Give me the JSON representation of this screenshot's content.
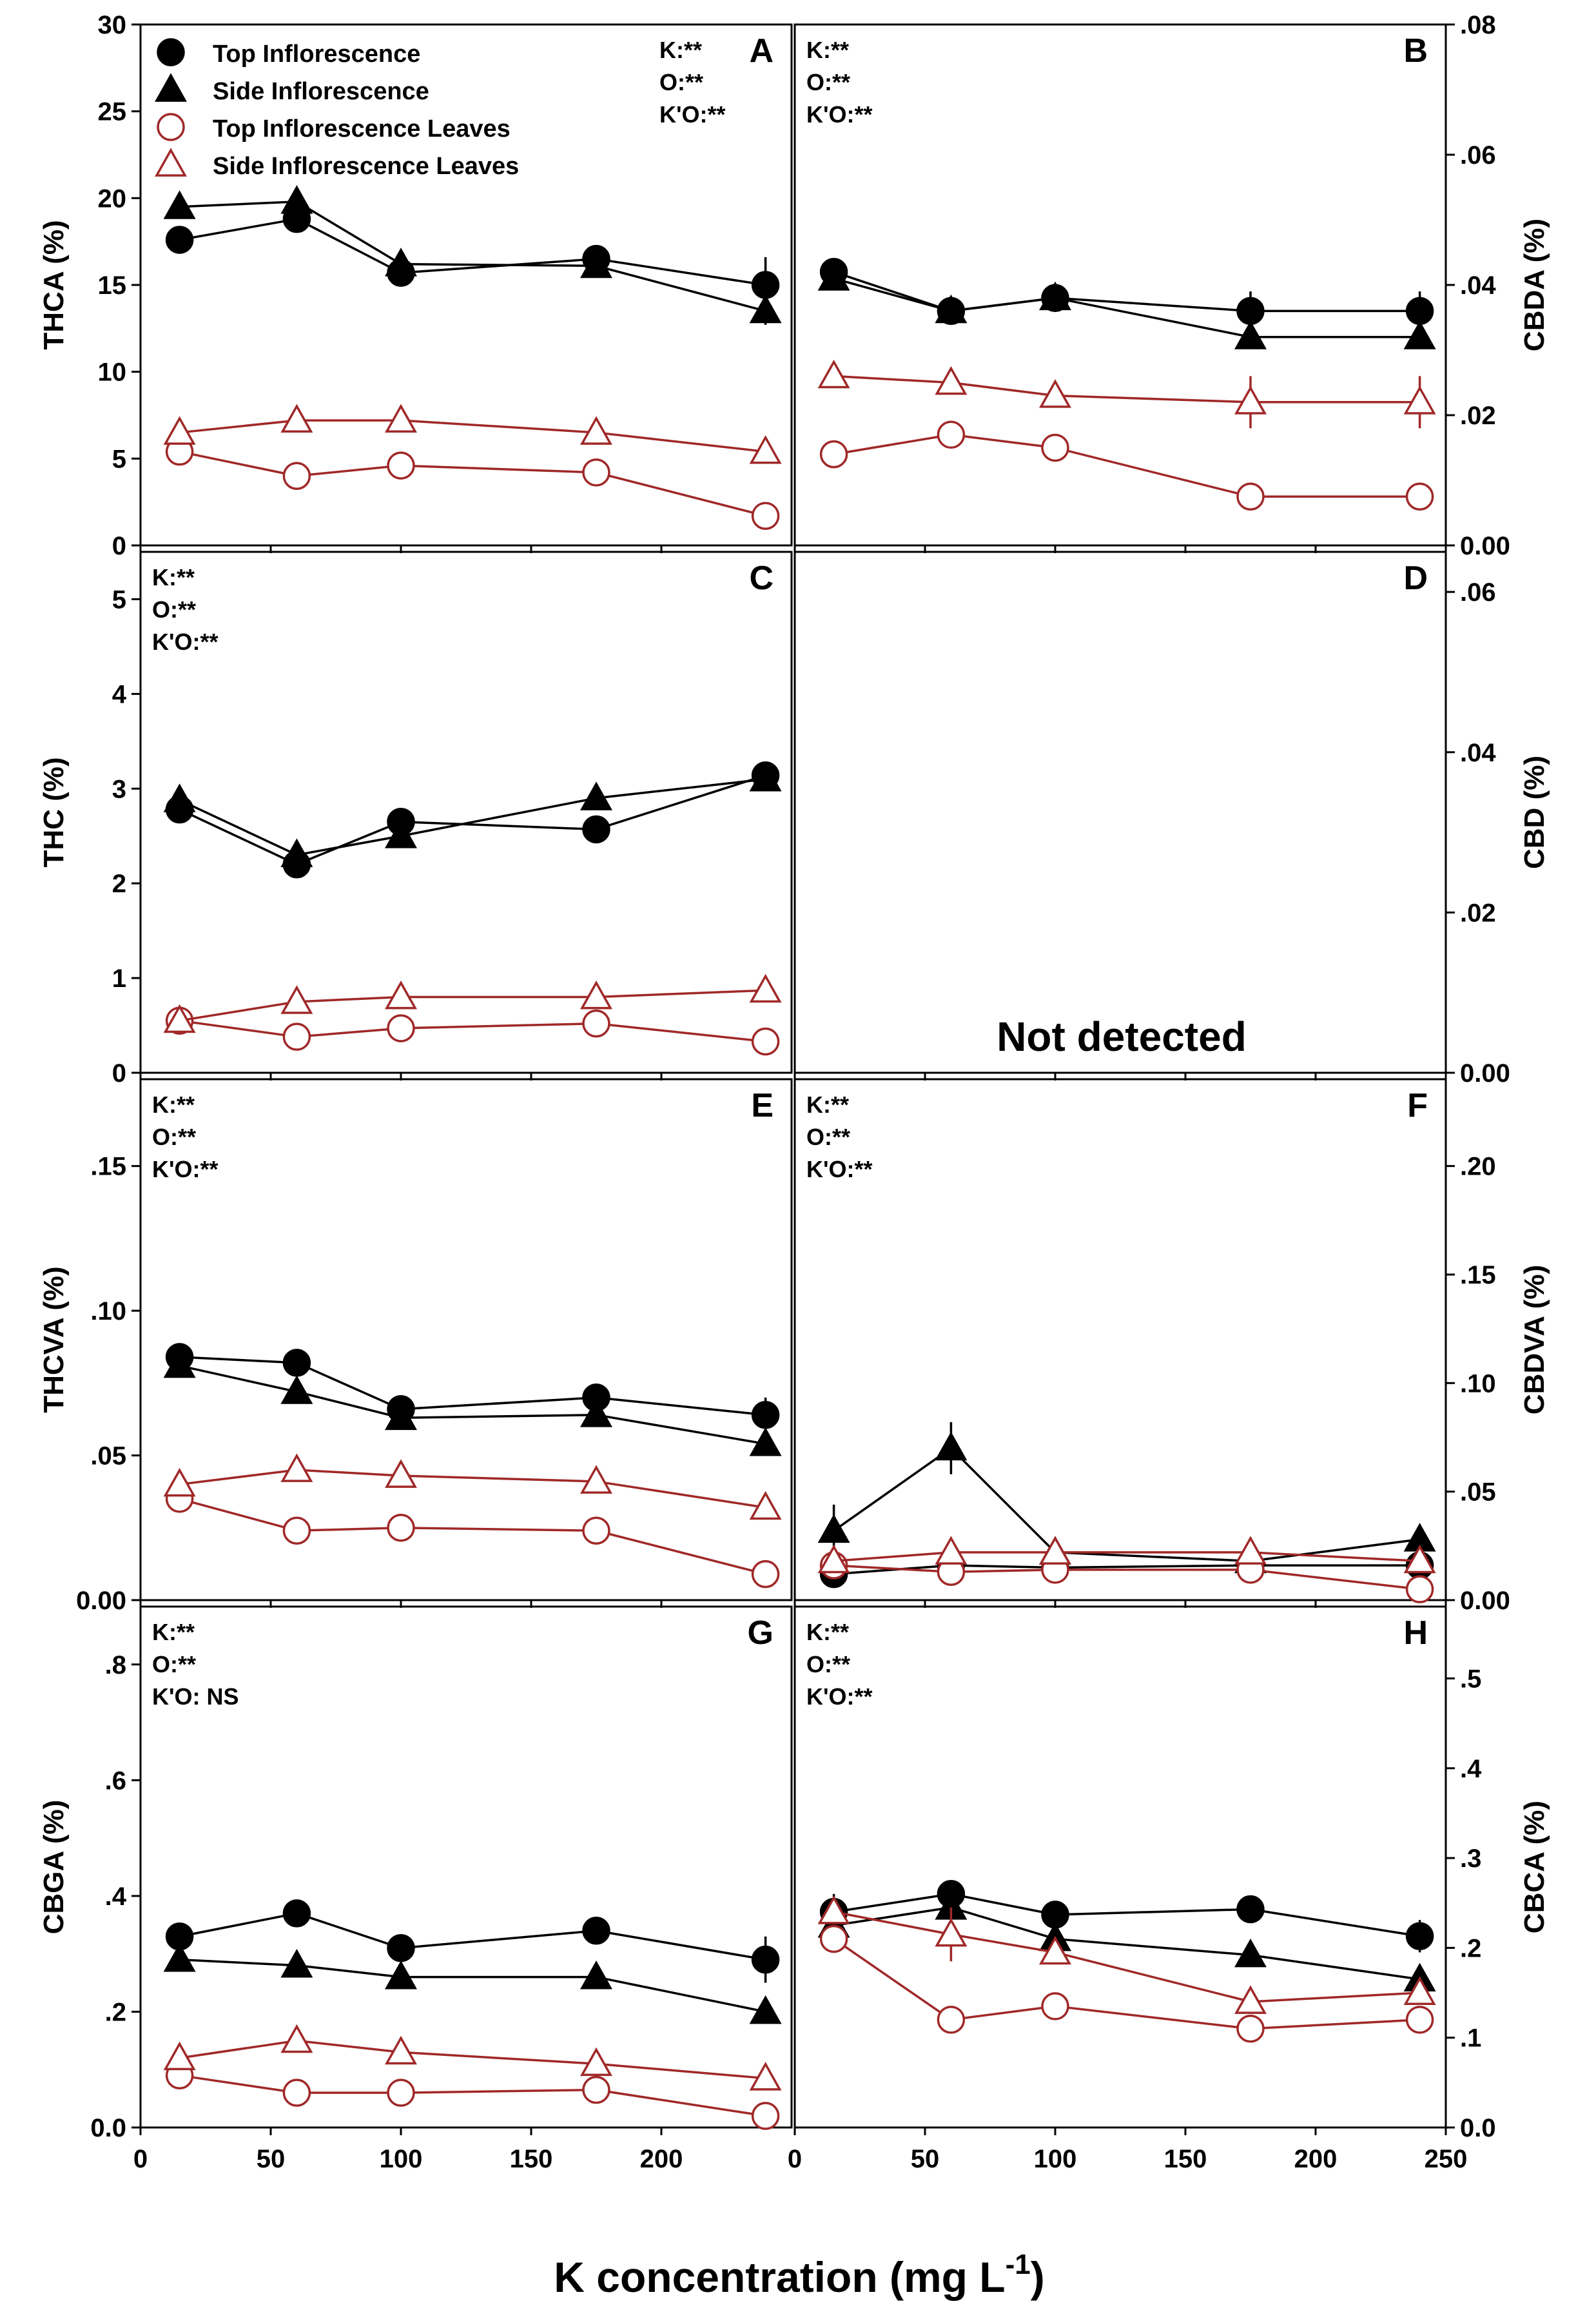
{
  "figure": {
    "x_axis_title": "K concentration (mg L",
    "x_axis_title_superscript": "-1",
    "x_axis_title_close": ")",
    "not_detected_label": "Not detected"
  },
  "legend": [
    {
      "label": "Top Inflorescence",
      "series": "top_inflorescence"
    },
    {
      "label": "Side Inflorescence",
      "series": "side_inflorescence"
    },
    {
      "label": "Top Inflorescence Leaves",
      "series": "top_leaves"
    },
    {
      "label": "Side Inflorescence Leaves",
      "series": "side_leaves"
    }
  ],
  "colors": {
    "inflorescence": "#000000",
    "leaves": "#a02828",
    "frame": "#000000"
  },
  "chart_data": [
    {
      "panel": "A",
      "type": "line",
      "ylabel": "THCA (%)",
      "ylabel_side": "left",
      "xlim": [
        0,
        250
      ],
      "ylim": [
        0,
        30
      ],
      "xticks": [
        0,
        50,
        100,
        150,
        200
      ],
      "xtick_labels": [],
      "yticks": [
        0,
        5,
        10,
        15,
        20,
        25,
        30
      ],
      "ytick_labels": [
        "0",
        "5",
        "10",
        "15",
        "20",
        "25",
        "30"
      ],
      "stats": [
        "K:**",
        "O:**",
        "K'O:**"
      ],
      "stats_position": "top-right",
      "series": [
        {
          "name": "Top Inflorescence",
          "x": [
            15,
            60,
            100,
            175,
            240
          ],
          "y": [
            17.6,
            18.8,
            15.7,
            16.5,
            15.0
          ],
          "err": [
            0.5,
            0.5,
            0.5,
            0.6,
            1.6
          ]
        },
        {
          "name": "Side Inflorescence",
          "x": [
            15,
            60,
            100,
            175,
            240
          ],
          "y": [
            19.5,
            19.8,
            16.2,
            16.1,
            13.5
          ],
          "err": [
            0,
            0,
            0.4,
            0.4,
            0.8
          ]
        },
        {
          "name": "Top Inflorescence Leaves",
          "x": [
            15,
            60,
            100,
            175,
            240
          ],
          "y": [
            5.4,
            4.0,
            4.6,
            4.2,
            1.7
          ],
          "err": [
            0.5,
            0,
            0.3,
            0.4,
            0
          ]
        },
        {
          "name": "Side Inflorescence Leaves",
          "x": [
            15,
            60,
            100,
            175,
            240
          ],
          "y": [
            6.5,
            7.2,
            7.2,
            6.5,
            5.4
          ],
          "err": [
            0.5,
            0,
            0,
            0,
            0
          ]
        }
      ]
    },
    {
      "panel": "B",
      "type": "line",
      "ylabel": "CBDA (%)",
      "ylabel_side": "right",
      "xlim": [
        0,
        250
      ],
      "ylim": [
        0,
        0.08
      ],
      "xticks": [
        0,
        50,
        100,
        150,
        200,
        250
      ],
      "xtick_labels": [],
      "yticks": [
        0,
        0.02,
        0.04,
        0.06,
        0.08
      ],
      "ytick_labels": [
        "0.00",
        ".02",
        ".04",
        ".06",
        ".08"
      ],
      "stats": [
        "K:**",
        "O:**",
        "K'O:**"
      ],
      "stats_position": "top-left",
      "series": [
        {
          "name": "Top Inflorescence",
          "x": [
            15,
            60,
            100,
            175,
            240
          ],
          "y": [
            0.042,
            0.036,
            0.038,
            0.036,
            0.036
          ],
          "err": [
            0,
            0,
            0,
            0.003,
            0.003
          ]
        },
        {
          "name": "Side Inflorescence",
          "x": [
            15,
            60,
            100,
            175,
            240
          ],
          "y": [
            0.041,
            0.036,
            0.038,
            0.032,
            0.032
          ],
          "err": [
            0,
            0,
            0,
            0,
            0
          ]
        },
        {
          "name": "Top Inflorescence Leaves",
          "x": [
            15,
            60,
            100,
            175,
            240
          ],
          "y": [
            0.014,
            0.017,
            0.015,
            0.0075,
            0.0075
          ],
          "err": [
            0,
            0,
            0,
            0,
            0
          ]
        },
        {
          "name": "Side Inflorescence Leaves",
          "x": [
            15,
            60,
            100,
            175,
            240
          ],
          "y": [
            0.026,
            0.025,
            0.023,
            0.022,
            0.022
          ],
          "err": [
            0,
            0,
            0,
            0.004,
            0.004
          ]
        }
      ]
    },
    {
      "panel": "C",
      "type": "line",
      "ylabel": "THC (%)",
      "ylabel_side": "left",
      "xlim": [
        0,
        250
      ],
      "ylim": [
        0,
        5.5
      ],
      "xticks": [
        0,
        50,
        100,
        150,
        200
      ],
      "xtick_labels": [],
      "yticks": [
        0,
        1,
        2,
        3,
        4,
        5
      ],
      "ytick_labels": [
        "0",
        "1",
        "2",
        "3",
        "4",
        "5"
      ],
      "stats": [
        "K:**",
        "O:**",
        "K'O:**"
      ],
      "stats_position": "top-left",
      "series": [
        {
          "name": "Top Inflorescence",
          "x": [
            15,
            60,
            100,
            175,
            240
          ],
          "y": [
            2.78,
            2.2,
            2.65,
            2.57,
            3.14
          ],
          "err": [
            0.12,
            0.05,
            0.05,
            0.1,
            0
          ]
        },
        {
          "name": "Side Inflorescence",
          "x": [
            15,
            60,
            100,
            175,
            240
          ],
          "y": [
            2.88,
            2.3,
            2.5,
            2.9,
            3.1
          ],
          "err": [
            0.1,
            0,
            0.1,
            0,
            0
          ]
        },
        {
          "name": "Top Inflorescence Leaves",
          "x": [
            15,
            60,
            100,
            175,
            240
          ],
          "y": [
            0.55,
            0.38,
            0.47,
            0.52,
            0.33
          ],
          "err": [
            0,
            0,
            0,
            0,
            0
          ]
        },
        {
          "name": "Side Inflorescence Leaves",
          "x": [
            15,
            60,
            100,
            175,
            240
          ],
          "y": [
            0.55,
            0.75,
            0.8,
            0.8,
            0.87
          ],
          "err": [
            0,
            0,
            0,
            0,
            0
          ]
        }
      ]
    },
    {
      "panel": "D",
      "type": "line",
      "ylabel": "CBD (%)",
      "ylabel_side": "right",
      "xlim": [
        0,
        250
      ],
      "ylim": [
        0,
        0.065
      ],
      "xticks": [
        0,
        50,
        100,
        150,
        200,
        250
      ],
      "xtick_labels": [],
      "yticks": [
        0,
        0.02,
        0.04,
        0.06
      ],
      "ytick_labels": [
        "0.00",
        ".02",
        ".04",
        ".06"
      ],
      "stats": [],
      "stats_position": "none",
      "series": []
    },
    {
      "panel": "E",
      "type": "line",
      "ylabel": "THCVA (%)",
      "ylabel_side": "left",
      "xlim": [
        0,
        250
      ],
      "ylim": [
        0,
        0.18
      ],
      "xticks": [
        0,
        50,
        100,
        150,
        200
      ],
      "xtick_labels": [],
      "yticks": [
        0,
        0.05,
        0.1,
        0.15
      ],
      "ytick_labels": [
        "0.00",
        ".05",
        ".10",
        ".15"
      ],
      "stats": [
        "K:**",
        "O:**",
        "K'O:**"
      ],
      "stats_position": "top-left",
      "series": [
        {
          "name": "Top Inflorescence",
          "x": [
            15,
            60,
            100,
            175,
            240
          ],
          "y": [
            0.084,
            0.082,
            0.066,
            0.07,
            0.064
          ],
          "err": [
            0,
            0,
            0,
            0,
            0.006
          ]
        },
        {
          "name": "Side Inflorescence",
          "x": [
            15,
            60,
            100,
            175,
            240
          ],
          "y": [
            0.081,
            0.072,
            0.063,
            0.064,
            0.054
          ],
          "err": [
            0.003,
            0,
            0,
            0,
            0
          ]
        },
        {
          "name": "Top Inflorescence Leaves",
          "x": [
            15,
            60,
            100,
            175,
            240
          ],
          "y": [
            0.035,
            0.024,
            0.025,
            0.024,
            0.009
          ],
          "err": [
            0,
            0,
            0,
            0,
            0
          ]
        },
        {
          "name": "Side Inflorescence Leaves",
          "x": [
            15,
            60,
            100,
            175,
            240
          ],
          "y": [
            0.04,
            0.045,
            0.043,
            0.041,
            0.032
          ],
          "err": [
            0,
            0,
            0,
            0,
            0.004
          ]
        }
      ]
    },
    {
      "panel": "F",
      "type": "line",
      "ylabel": "CBDVA (%)",
      "ylabel_side": "right",
      "xlim": [
        0,
        250
      ],
      "ylim": [
        0,
        0.24
      ],
      "xticks": [
        0,
        50,
        100,
        150,
        200,
        250
      ],
      "xtick_labels": [],
      "yticks": [
        0,
        0.05,
        0.1,
        0.15,
        0.2
      ],
      "ytick_labels": [
        "0.00",
        ".05",
        ".10",
        ".15",
        ".20"
      ],
      "stats": [
        "K:**",
        "O:**",
        "K'O:**"
      ],
      "stats_position": "top-left",
      "series": [
        {
          "name": "Top Inflorescence",
          "x": [
            15,
            60,
            100,
            175,
            240
          ],
          "y": [
            0.012,
            0.016,
            0.015,
            0.016,
            0.016
          ],
          "err": [
            0,
            0,
            0,
            0,
            0
          ]
        },
        {
          "name": "Side Inflorescence",
          "x": [
            15,
            60,
            100,
            175,
            240
          ],
          "y": [
            0.032,
            0.07,
            0.022,
            0.018,
            0.028
          ],
          "err": [
            0.012,
            0.012,
            0,
            0,
            0
          ]
        },
        {
          "name": "Top Inflorescence Leaves",
          "x": [
            15,
            60,
            100,
            175,
            240
          ],
          "y": [
            0.016,
            0.013,
            0.014,
            0.014,
            0.005
          ],
          "err": [
            0,
            0,
            0,
            0,
            0
          ]
        },
        {
          "name": "Side Inflorescence Leaves",
          "x": [
            15,
            60,
            100,
            175,
            240
          ],
          "y": [
            0.018,
            0.022,
            0.022,
            0.022,
            0.018
          ],
          "err": [
            0,
            0,
            0,
            0,
            0
          ]
        }
      ]
    },
    {
      "panel": "G",
      "type": "line",
      "ylabel": "CBGA (%)",
      "ylabel_side": "left",
      "xlim": [
        0,
        250
      ],
      "ylim": [
        0,
        0.9
      ],
      "xticks": [
        0,
        50,
        100,
        150,
        200
      ],
      "xtick_labels": [
        "0",
        "50",
        "100",
        "150",
        "200"
      ],
      "yticks": [
        0,
        0.2,
        0.4,
        0.6,
        0.8
      ],
      "ytick_labels": [
        "0.0",
        ".2",
        ".4",
        ".6",
        ".8"
      ],
      "stats": [
        "K:**",
        "O:**",
        "K'O: NS"
      ],
      "stats_position": "top-left",
      "series": [
        {
          "name": "Top Inflorescence",
          "x": [
            15,
            60,
            100,
            175,
            240
          ],
          "y": [
            0.33,
            0.37,
            0.31,
            0.34,
            0.29
          ],
          "err": [
            0,
            0,
            0,
            0,
            0.04
          ]
        },
        {
          "name": "Side Inflorescence",
          "x": [
            15,
            60,
            100,
            175,
            240
          ],
          "y": [
            0.29,
            0.28,
            0.26,
            0.26,
            0.2
          ],
          "err": [
            0.02,
            0,
            0,
            0,
            0
          ]
        },
        {
          "name": "Top Inflorescence Leaves",
          "x": [
            15,
            60,
            100,
            175,
            240
          ],
          "y": [
            0.09,
            0.06,
            0.06,
            0.065,
            0.02
          ],
          "err": [
            0,
            0,
            0,
            0,
            0
          ]
        },
        {
          "name": "Side Inflorescence Leaves",
          "x": [
            15,
            60,
            100,
            175,
            240
          ],
          "y": [
            0.12,
            0.15,
            0.13,
            0.11,
            0.085
          ],
          "err": [
            0,
            0,
            0,
            0,
            0
          ]
        }
      ]
    },
    {
      "panel": "H",
      "type": "line",
      "ylabel": "CBCA (%)",
      "ylabel_side": "right",
      "xlim": [
        0,
        250
      ],
      "ylim": [
        0,
        0.58
      ],
      "xticks": [
        0,
        50,
        100,
        150,
        200,
        250
      ],
      "xtick_labels": [
        "0",
        "50",
        "100",
        "150",
        "200",
        "250"
      ],
      "yticks": [
        0,
        0.1,
        0.2,
        0.3,
        0.4,
        0.5
      ],
      "ytick_labels": [
        "0.0",
        ".1",
        ".2",
        ".3",
        ".4",
        ".5"
      ],
      "stats": [
        "K:**",
        "O:**",
        "K'O:**"
      ],
      "stats_position": "top-left",
      "series": [
        {
          "name": "Top Inflorescence",
          "x": [
            15,
            60,
            100,
            175,
            240
          ],
          "y": [
            0.24,
            0.26,
            0.237,
            0.243,
            0.213
          ],
          "err": [
            0.02,
            0,
            0,
            0,
            0.018
          ]
        },
        {
          "name": "Side Inflorescence",
          "x": [
            15,
            60,
            100,
            175,
            240
          ],
          "y": [
            0.225,
            0.245,
            0.21,
            0.192,
            0.165
          ],
          "err": [
            0,
            0,
            0,
            0,
            0
          ]
        },
        {
          "name": "Top Inflorescence Leaves",
          "x": [
            15,
            60,
            100,
            175,
            240
          ],
          "y": [
            0.21,
            0.12,
            0.135,
            0.11,
            0.12
          ],
          "err": [
            0,
            0,
            0,
            0,
            0
          ]
        },
        {
          "name": "Side Inflorescence Leaves",
          "x": [
            15,
            60,
            100,
            175,
            240
          ],
          "y": [
            0.24,
            0.215,
            0.195,
            0.14,
            0.15
          ],
          "err": [
            0,
            0.03,
            0,
            0,
            0
          ]
        }
      ]
    }
  ]
}
